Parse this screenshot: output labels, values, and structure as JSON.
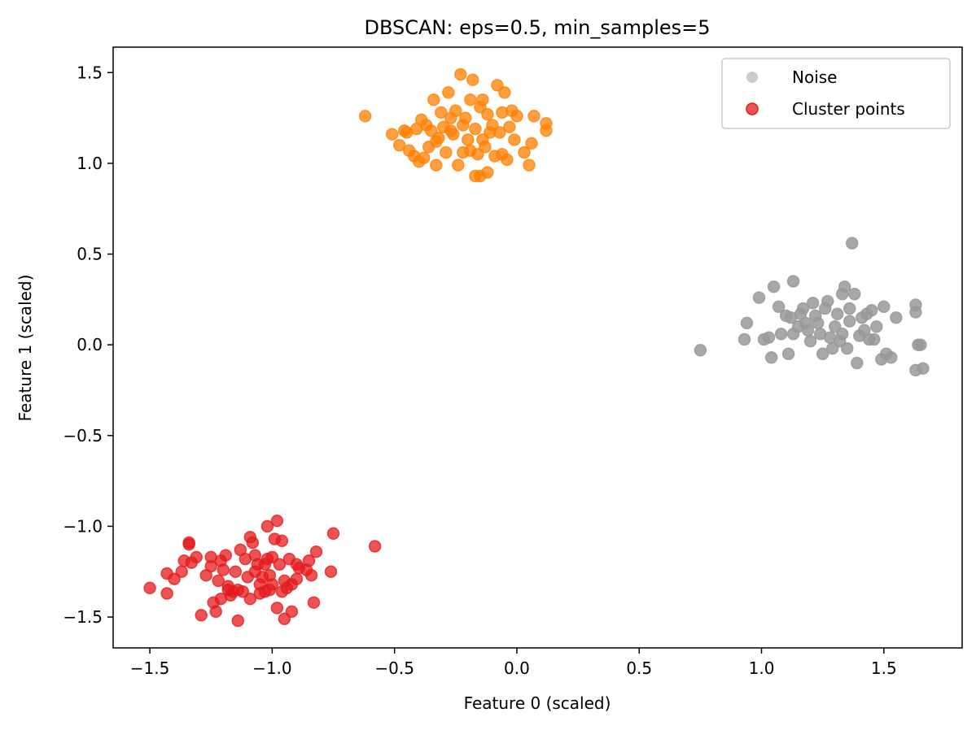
{
  "chart_data": {
    "type": "scatter",
    "title": "DBSCAN: eps=0.5, min_samples=5",
    "xlabel": "Feature 0 (scaled)",
    "ylabel": "Feature 1 (scaled)",
    "xlim": [
      -1.65,
      1.82
    ],
    "ylim": [
      -1.67,
      1.64
    ],
    "xticks": [
      -1.5,
      -1.0,
      -0.5,
      0.0,
      0.5,
      1.0,
      1.5
    ],
    "xtick_labels": [
      "−1.5",
      "−1.0",
      "−0.5",
      "0.0",
      "0.5",
      "1.0",
      "1.5"
    ],
    "yticks": [
      -1.5,
      -1.0,
      -0.5,
      0.0,
      0.5,
      1.0,
      1.5
    ],
    "ytick_labels": [
      "−1.5",
      "−1.0",
      "−0.5",
      "0.0",
      "0.5",
      "1.0",
      "1.5"
    ],
    "grid": false,
    "legend": {
      "location": "upper right",
      "entries": [
        {
          "label": "Noise",
          "color": "#cccccc"
        },
        {
          "label": "Cluster points",
          "color": "#e41a1c"
        }
      ]
    },
    "series": [
      {
        "name": "cluster-red",
        "color": "#e41a1c",
        "alpha": 0.75,
        "points": [
          [
            -1.5,
            -1.34
          ],
          [
            -1.43,
            -1.37
          ],
          [
            -1.43,
            -1.26
          ],
          [
            -1.4,
            -1.29
          ],
          [
            -1.37,
            -1.25
          ],
          [
            -1.36,
            -1.19
          ],
          [
            -1.34,
            -1.09
          ],
          [
            -1.34,
            -1.1
          ],
          [
            -1.33,
            -1.2
          ],
          [
            -1.31,
            -1.17
          ],
          [
            -1.29,
            -1.49
          ],
          [
            -1.27,
            -1.27
          ],
          [
            -1.25,
            -1.17
          ],
          [
            -1.25,
            -1.22
          ],
          [
            -1.24,
            -1.42
          ],
          [
            -1.23,
            -1.47
          ],
          [
            -1.22,
            -1.3
          ],
          [
            -1.21,
            -1.4
          ],
          [
            -1.21,
            -1.19
          ],
          [
            -1.2,
            -1.24
          ],
          [
            -1.19,
            -1.16
          ],
          [
            -1.18,
            -1.35
          ],
          [
            -1.18,
            -1.33
          ],
          [
            -1.17,
            -1.38
          ],
          [
            -1.16,
            -1.36
          ],
          [
            -1.15,
            -1.25
          ],
          [
            -1.14,
            -1.52
          ],
          [
            -1.14,
            -1.35
          ],
          [
            -1.13,
            -1.13
          ],
          [
            -1.12,
            -1.36
          ],
          [
            -1.11,
            -1.18
          ],
          [
            -1.1,
            -1.28
          ],
          [
            -1.09,
            -1.4
          ],
          [
            -1.09,
            -1.06
          ],
          [
            -1.08,
            -1.09
          ],
          [
            -1.07,
            -1.16
          ],
          [
            -1.07,
            -1.25
          ],
          [
            -1.06,
            -1.21
          ],
          [
            -1.05,
            -1.32
          ],
          [
            -1.05,
            -1.37
          ],
          [
            -1.04,
            -1.28
          ],
          [
            -1.03,
            -1.36
          ],
          [
            -1.03,
            -1.21
          ],
          [
            -1.02,
            -1.0
          ],
          [
            -1.02,
            -1.18
          ],
          [
            -1.01,
            -1.35
          ],
          [
            -1.01,
            -1.27
          ],
          [
            -1.0,
            -1.32
          ],
          [
            -1.0,
            -1.17
          ],
          [
            -0.99,
            -1.07
          ],
          [
            -0.98,
            -0.97
          ],
          [
            -0.98,
            -1.45
          ],
          [
            -0.97,
            -1.21
          ],
          [
            -0.96,
            -1.08
          ],
          [
            -0.96,
            -1.36
          ],
          [
            -0.95,
            -1.51
          ],
          [
            -0.95,
            -1.3
          ],
          [
            -0.94,
            -1.34
          ],
          [
            -0.93,
            -1.18
          ],
          [
            -0.92,
            -1.47
          ],
          [
            -0.92,
            -1.32
          ],
          [
            -0.9,
            -1.21
          ],
          [
            -0.9,
            -1.29
          ],
          [
            -0.89,
            -1.23
          ],
          [
            -0.86,
            -1.24
          ],
          [
            -0.85,
            -1.19
          ],
          [
            -0.84,
            -1.27
          ],
          [
            -0.83,
            -1.42
          ],
          [
            -0.82,
            -1.14
          ],
          [
            -0.76,
            -1.25
          ],
          [
            -0.75,
            -1.04
          ],
          [
            -0.58,
            -1.11
          ]
        ]
      },
      {
        "name": "cluster-orange",
        "color": "#ff7f00",
        "alpha": 0.75,
        "points": [
          [
            -0.62,
            1.26
          ],
          [
            -0.51,
            1.16
          ],
          [
            -0.48,
            1.1
          ],
          [
            -0.46,
            1.18
          ],
          [
            -0.45,
            1.17
          ],
          [
            -0.44,
            1.07
          ],
          [
            -0.42,
            1.04
          ],
          [
            -0.41,
            1.19
          ],
          [
            -0.4,
            1.01
          ],
          [
            -0.39,
            1.24
          ],
          [
            -0.38,
            1.03
          ],
          [
            -0.37,
            1.21
          ],
          [
            -0.36,
            1.09
          ],
          [
            -0.35,
            1.18
          ],
          [
            -0.34,
            1.35
          ],
          [
            -0.33,
            0.99
          ],
          [
            -0.33,
            1.12
          ],
          [
            -0.32,
            1.14
          ],
          [
            -0.31,
            1.28
          ],
          [
            -0.3,
            1.2
          ],
          [
            -0.29,
            1.06
          ],
          [
            -0.28,
            1.39
          ],
          [
            -0.27,
            1.18
          ],
          [
            -0.27,
            1.25
          ],
          [
            -0.26,
            1.16
          ],
          [
            -0.25,
            1.29
          ],
          [
            -0.24,
            0.99
          ],
          [
            -0.23,
            1.49
          ],
          [
            -0.22,
            1.06
          ],
          [
            -0.22,
            1.21
          ],
          [
            -0.21,
            1.25
          ],
          [
            -0.2,
            1.13
          ],
          [
            -0.19,
            1.35
          ],
          [
            -0.19,
            1.07
          ],
          [
            -0.18,
            1.46
          ],
          [
            -0.17,
            1.19
          ],
          [
            -0.17,
            0.93
          ],
          [
            -0.16,
            1.05
          ],
          [
            -0.15,
            1.31
          ],
          [
            -0.15,
            0.93
          ],
          [
            -0.14,
            1.35
          ],
          [
            -0.14,
            1.13
          ],
          [
            -0.13,
            1.09
          ],
          [
            -0.12,
            1.27
          ],
          [
            -0.12,
            0.95
          ],
          [
            -0.11,
            1.17
          ],
          [
            -0.1,
            1.21
          ],
          [
            -0.09,
            1.04
          ],
          [
            -0.08,
            1.43
          ],
          [
            -0.07,
            1.17
          ],
          [
            -0.06,
            1.28
          ],
          [
            -0.06,
            1.05
          ],
          [
            -0.05,
            1.39
          ],
          [
            -0.04,
            1.02
          ],
          [
            -0.03,
            1.2
          ],
          [
            -0.02,
            1.29
          ],
          [
            -0.01,
            1.13
          ],
          [
            0.0,
            1.26
          ],
          [
            0.03,
            1.06
          ],
          [
            0.05,
            0.99
          ],
          [
            0.06,
            1.11
          ],
          [
            0.07,
            1.26
          ],
          [
            0.12,
            1.22
          ],
          [
            0.12,
            1.18
          ]
        ]
      },
      {
        "name": "noise",
        "color": "#999999",
        "alpha": 0.85,
        "points": [
          [
            0.75,
            -0.03
          ],
          [
            0.93,
            0.03
          ],
          [
            0.94,
            0.12
          ],
          [
            0.99,
            0.26
          ],
          [
            1.01,
            0.03
          ],
          [
            1.03,
            0.04
          ],
          [
            1.04,
            -0.07
          ],
          [
            1.05,
            0.32
          ],
          [
            1.07,
            0.21
          ],
          [
            1.08,
            0.06
          ],
          [
            1.1,
            0.16
          ],
          [
            1.11,
            -0.05
          ],
          [
            1.12,
            0.15
          ],
          [
            1.13,
            0.35
          ],
          [
            1.13,
            0.06
          ],
          [
            1.15,
            0.1
          ],
          [
            1.16,
            0.17
          ],
          [
            1.17,
            0.2
          ],
          [
            1.18,
            0.12
          ],
          [
            1.19,
            0.08
          ],
          [
            1.2,
            0.02
          ],
          [
            1.21,
            0.23
          ],
          [
            1.22,
            0.16
          ],
          [
            1.23,
            0.12
          ],
          [
            1.24,
            0.06
          ],
          [
            1.25,
            -0.05
          ],
          [
            1.26,
            0.2
          ],
          [
            1.27,
            0.24
          ],
          [
            1.28,
            0.04
          ],
          [
            1.29,
            -0.02
          ],
          [
            1.3,
            0.1
          ],
          [
            1.31,
            0.17
          ],
          [
            1.32,
            0.02
          ],
          [
            1.33,
            0.06
          ],
          [
            1.33,
            0.28
          ],
          [
            1.34,
            0.32
          ],
          [
            1.35,
            -0.02
          ],
          [
            1.36,
            0.13
          ],
          [
            1.36,
            0.2
          ],
          [
            1.37,
            0.56
          ],
          [
            1.38,
            0.28
          ],
          [
            1.39,
            -0.1
          ],
          [
            1.4,
            0.05
          ],
          [
            1.41,
            0.15
          ],
          [
            1.42,
            0.08
          ],
          [
            1.43,
            0.17
          ],
          [
            1.44,
            0.03
          ],
          [
            1.45,
            0.19
          ],
          [
            1.46,
            0.03
          ],
          [
            1.47,
            0.1
          ],
          [
            1.49,
            -0.08
          ],
          [
            1.5,
            0.21
          ],
          [
            1.51,
            -0.05
          ],
          [
            1.53,
            -0.07
          ],
          [
            1.55,
            0.15
          ],
          [
            1.63,
            -0.14
          ],
          [
            1.63,
            0.22
          ],
          [
            1.63,
            0.18
          ],
          [
            1.64,
            0.0
          ],
          [
            1.65,
            0.0
          ],
          [
            1.66,
            -0.13
          ]
        ]
      }
    ]
  }
}
